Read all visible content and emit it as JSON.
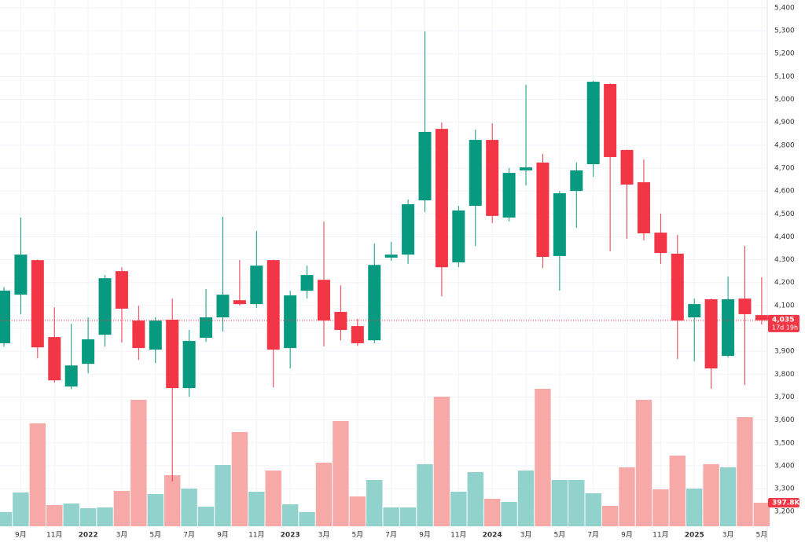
{
  "chart_data": {
    "type": "candlestick",
    "categories": [
      null,
      "9月",
      null,
      "11月",
      null,
      "2022",
      null,
      "3月",
      null,
      "5月",
      null,
      "7月",
      null,
      "9月",
      null,
      "11月",
      null,
      "2023",
      null,
      "3月",
      null,
      "5月",
      null,
      "7月",
      null,
      "9月",
      null,
      "11月",
      null,
      "2024",
      null,
      "3月",
      null,
      "5月",
      null,
      "7月",
      null,
      "9月",
      null,
      "11月",
      null,
      "2025",
      null,
      "3月",
      null,
      "5月"
    ],
    "open": [
      3935,
      4147,
      4298,
      3962,
      3746,
      3845,
      3972,
      4250,
      4034,
      3907,
      4038,
      3739,
      3959,
      4048,
      4123,
      4106,
      4298,
      3914,
      4164,
      4212,
      4072,
      4010,
      3948,
      4309,
      4322,
      4559,
      4871,
      4288,
      4535,
      4823,
      4484,
      4690,
      4724,
      4316,
      4600,
      4717,
      5067,
      4779,
      4638,
      4418,
      4326,
      4048,
      4127,
      3880,
      4130,
      4058
    ],
    "high": [
      4180,
      4484,
      4300,
      4092,
      4020,
      4048,
      4233,
      4267,
      4099,
      4048,
      4130,
      3993,
      4171,
      4487,
      4298,
      4425,
      4300,
      4164,
      4274,
      4466,
      4188,
      4041,
      4370,
      4377,
      4563,
      5297,
      4899,
      4535,
      4868,
      4895,
      4700,
      5064,
      4762,
      4600,
      4724,
      5081,
      5070,
      4780,
      4738,
      4501,
      4408,
      4130,
      4130,
      4226,
      4360,
      4223
    ],
    "low": [
      3920,
      4062,
      3869,
      3763,
      3735,
      3804,
      3921,
      3938,
      3862,
      3849,
      3331,
      3701,
      3941,
      3986,
      4100,
      4089,
      3742,
      3825,
      4130,
      3921,
      3948,
      3924,
      3935,
      4295,
      4281,
      4508,
      4140,
      4267,
      4360,
      4460,
      4467,
      4624,
      4264,
      4165,
      4439,
      4662,
      4336,
      4391,
      4384,
      4281,
      3866,
      3856,
      3736,
      3873,
      3753,
      4017
    ],
    "close": [
      4165,
      4322,
      3917,
      3773,
      3838,
      3952,
      4219,
      4086,
      3914,
      4034,
      3739,
      3945,
      4048,
      4147,
      4106,
      4274,
      3907,
      4144,
      4233,
      4034,
      3993,
      3935,
      4277,
      4322,
      4542,
      4858,
      4267,
      4515,
      4823,
      4491,
      4679,
      4703,
      4312,
      4590,
      4690,
      5077,
      4748,
      4628,
      4415,
      4329,
      4034,
      4106,
      3825,
      4127,
      4062,
      4035
    ],
    "volume": [
      239000,
      570000,
      1737000,
      358000,
      385000,
      305000,
      318000,
      597000,
      2135000,
      544000,
      862000,
      637000,
      332000,
      1034000,
      1591000,
      583000,
      941000,
      371000,
      239000,
      1074000,
      1777000,
      504000,
      782000,
      318000,
      318000,
      1048000,
      2188000,
      583000,
      915000,
      464000,
      411000,
      941000,
      2320000,
      782000,
      782000,
      557000,
      345000,
      995000,
      2135000,
      623000,
      1193000,
      637000,
      1048000,
      995000,
      1843000,
      397800
    ],
    "volume_label": {
      "value": 397800,
      "label": "397.8K"
    },
    "last_price": {
      "value": 4035,
      "label": "4,035"
    },
    "countdown": "17d 19h",
    "up_color": "#089981",
    "down_color": "#f23645",
    "volume_up_color": "#92d2cc",
    "volume_down_color": "#f7a9a7",
    "ylim": [
      3067,
      5434
    ],
    "yticks": [
      {
        "value": 3200,
        "label": "3,200"
      },
      {
        "value": 3300,
        "label": "3,300"
      },
      {
        "value": 3400,
        "label": "3,400"
      },
      {
        "value": 3500,
        "label": "3,500"
      },
      {
        "value": 3600,
        "label": "3,600"
      },
      {
        "value": 3700,
        "label": "3,700"
      },
      {
        "value": 3800,
        "label": "3,800"
      },
      {
        "value": 3900,
        "label": "3,900"
      },
      {
        "value": 4000,
        "label": "4,000"
      },
      {
        "value": 4100,
        "label": "4,100"
      },
      {
        "value": 4200,
        "label": "4,200"
      },
      {
        "value": 4300,
        "label": "4,300"
      },
      {
        "value": 4400,
        "label": "4,400"
      },
      {
        "value": 4500,
        "label": "4,500"
      },
      {
        "value": 4600,
        "label": "4,600"
      },
      {
        "value": 4700,
        "label": "4,700"
      },
      {
        "value": 4800,
        "label": "4,800"
      },
      {
        "value": 4900,
        "label": "4,900"
      },
      {
        "value": 5000,
        "label": "5,000"
      },
      {
        "value": 5100,
        "label": "5,100"
      },
      {
        "value": 5200,
        "label": "5,200"
      },
      {
        "value": 5300,
        "label": "5,300"
      },
      {
        "value": 5400,
        "label": "5,400"
      }
    ],
    "grid": true
  }
}
